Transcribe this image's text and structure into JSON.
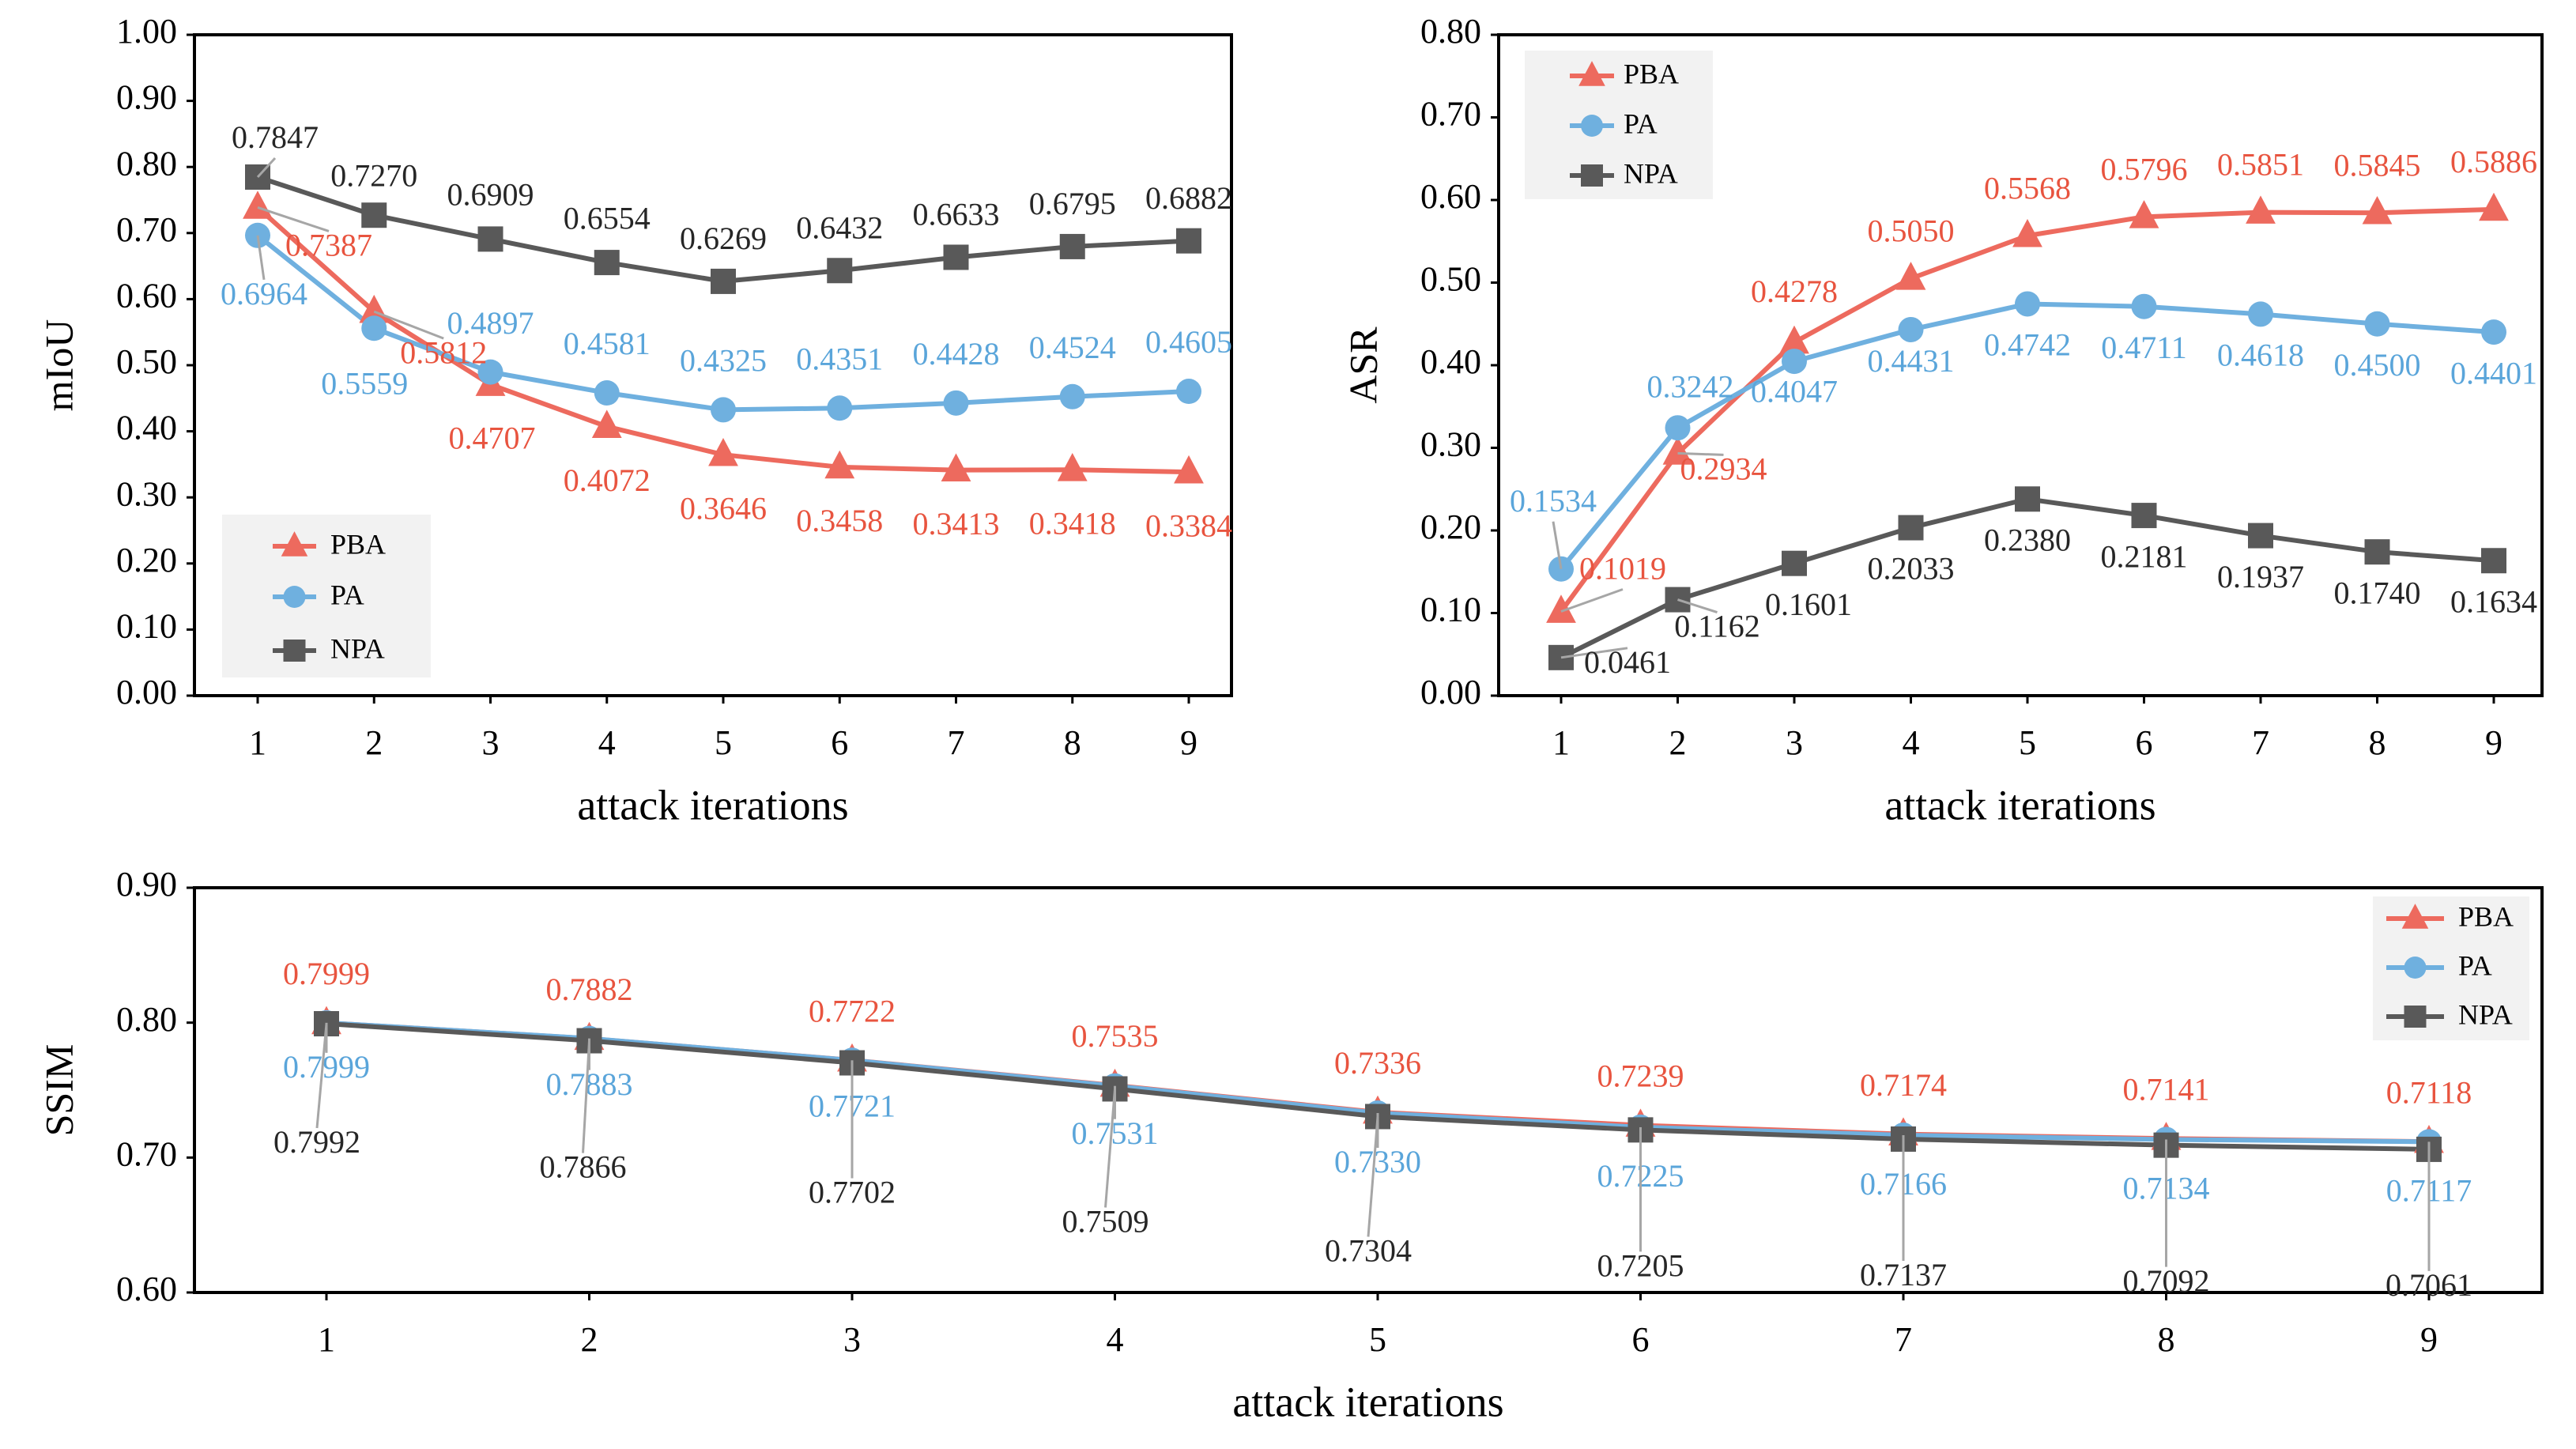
{
  "colors": {
    "PBA": "#ED6A5E",
    "PA": "#6FB0DF",
    "NPA": "#595959",
    "frame": "#000000",
    "legend_bg": "#F2F2F2"
  },
  "chart_data": [
    {
      "id": "miou",
      "type": "line",
      "title": "",
      "xlabel": "attack iterations",
      "ylabel": "mIoU",
      "categories": [
        "1",
        "2",
        "3",
        "4",
        "5",
        "6",
        "7",
        "8",
        "9"
      ],
      "ylim": [
        0,
        1
      ],
      "yticks": [
        "0.00",
        "0.10",
        "0.20",
        "0.30",
        "0.40",
        "0.50",
        "0.60",
        "0.70",
        "0.80",
        "0.90",
        "1.00"
      ],
      "grid": false,
      "legend": "bottom-left",
      "series": [
        {
          "name": "PBA",
          "marker": "triangle",
          "values": [
            0.7387,
            0.5812,
            0.4707,
            0.4072,
            0.3646,
            0.3458,
            0.3413,
            0.3418,
            0.3384
          ],
          "labels": [
            "0.7387",
            "0.5812",
            "0.4707",
            "0.4072",
            "0.3646",
            "0.3458",
            "0.3413",
            "0.3418",
            "0.3384"
          ]
        },
        {
          "name": "PA",
          "marker": "circle",
          "values": [
            0.6964,
            0.5559,
            0.4897,
            0.4581,
            0.4325,
            0.4351,
            0.4428,
            0.4524,
            0.4605
          ],
          "labels": [
            "0.6964",
            "0.5559",
            "0.4897",
            "0.4581",
            "0.4325",
            "0.4351",
            "0.4428",
            "0.4524",
            "0.4605"
          ]
        },
        {
          "name": "NPA",
          "marker": "square",
          "values": [
            0.7847,
            0.727,
            0.6909,
            0.6554,
            0.6269,
            0.6432,
            0.6633,
            0.6795,
            0.6882
          ],
          "labels": [
            "0.7847",
            "0.7270",
            "0.6909",
            "0.6554",
            "0.6269",
            "0.6432",
            "0.6633",
            "0.6795",
            "0.6882"
          ]
        }
      ]
    },
    {
      "id": "asr",
      "type": "line",
      "title": "",
      "xlabel": "attack iterations",
      "ylabel": "ASR",
      "categories": [
        "1",
        "2",
        "3",
        "4",
        "5",
        "6",
        "7",
        "8",
        "9"
      ],
      "ylim": [
        0,
        0.8
      ],
      "yticks": [
        "0.00",
        "0.10",
        "0.20",
        "0.30",
        "0.40",
        "0.50",
        "0.60",
        "0.70",
        "0.80"
      ],
      "grid": false,
      "legend": "top-left",
      "series": [
        {
          "name": "PBA",
          "marker": "triangle",
          "values": [
            0.1019,
            0.2934,
            0.4278,
            0.505,
            0.5568,
            0.5796,
            0.5851,
            0.5845,
            0.5886
          ],
          "labels": [
            "0.1019",
            "0.2934",
            "0.4278",
            "0.5050",
            "0.5568",
            "0.5796",
            "0.5851",
            "0.5845",
            "0.5886"
          ]
        },
        {
          "name": "PA",
          "marker": "circle",
          "values": [
            0.1534,
            0.3242,
            0.4047,
            0.4431,
            0.4742,
            0.4711,
            0.4618,
            0.45,
            0.4401
          ],
          "labels": [
            "0.1534",
            "0.3242",
            "0.4047",
            "0.4431",
            "0.4742",
            "0.4711",
            "0.4618",
            "0.4500",
            "0.4401"
          ]
        },
        {
          "name": "NPA",
          "marker": "square",
          "values": [
            0.0461,
            0.1162,
            0.1601,
            0.2033,
            0.238,
            0.2181,
            0.1937,
            0.174,
            0.1634
          ],
          "labels": [
            "0.0461",
            "0.1162",
            "0.1601",
            "0.2033",
            "0.2380",
            "0.2181",
            "0.1937",
            "0.1740",
            "0.1634"
          ]
        }
      ]
    },
    {
      "id": "ssim",
      "type": "line",
      "title": "",
      "xlabel": "attack iterations",
      "ylabel": "SSIM",
      "categories": [
        "1",
        "2",
        "3",
        "4",
        "5",
        "6",
        "7",
        "8",
        "9"
      ],
      "ylim": [
        0.6,
        0.9
      ],
      "yticks": [
        "0.60",
        "0.70",
        "0.80",
        "0.90"
      ],
      "grid": false,
      "legend": "top-right",
      "series": [
        {
          "name": "PBA",
          "marker": "triangle",
          "values": [
            0.7999,
            0.7882,
            0.7722,
            0.7535,
            0.7336,
            0.7239,
            0.7174,
            0.7141,
            0.7118
          ],
          "labels": [
            "0.7999",
            "0.7882",
            "0.7722",
            "0.7535",
            "0.7336",
            "0.7239",
            "0.7174",
            "0.7141",
            "0.7118"
          ]
        },
        {
          "name": "PA",
          "marker": "circle",
          "values": [
            0.7999,
            0.7883,
            0.7721,
            0.7531,
            0.733,
            0.7225,
            0.7166,
            0.7134,
            0.7117
          ],
          "labels": [
            "0.7999",
            "0.7883",
            "0.7721",
            "0.7531",
            "0.7330",
            "0.7225",
            "0.7166",
            "0.7134",
            "0.7117"
          ]
        },
        {
          "name": "NPA",
          "marker": "square",
          "values": [
            0.7992,
            0.7866,
            0.7702,
            0.7509,
            0.7304,
            0.7205,
            0.7137,
            0.7092,
            0.7061
          ],
          "labels": [
            "0.7992",
            "0.7866",
            "0.7702",
            "0.7509",
            "0.7304",
            "0.7205",
            "0.7137",
            "0.7092",
            "0.7061"
          ]
        }
      ]
    }
  ]
}
